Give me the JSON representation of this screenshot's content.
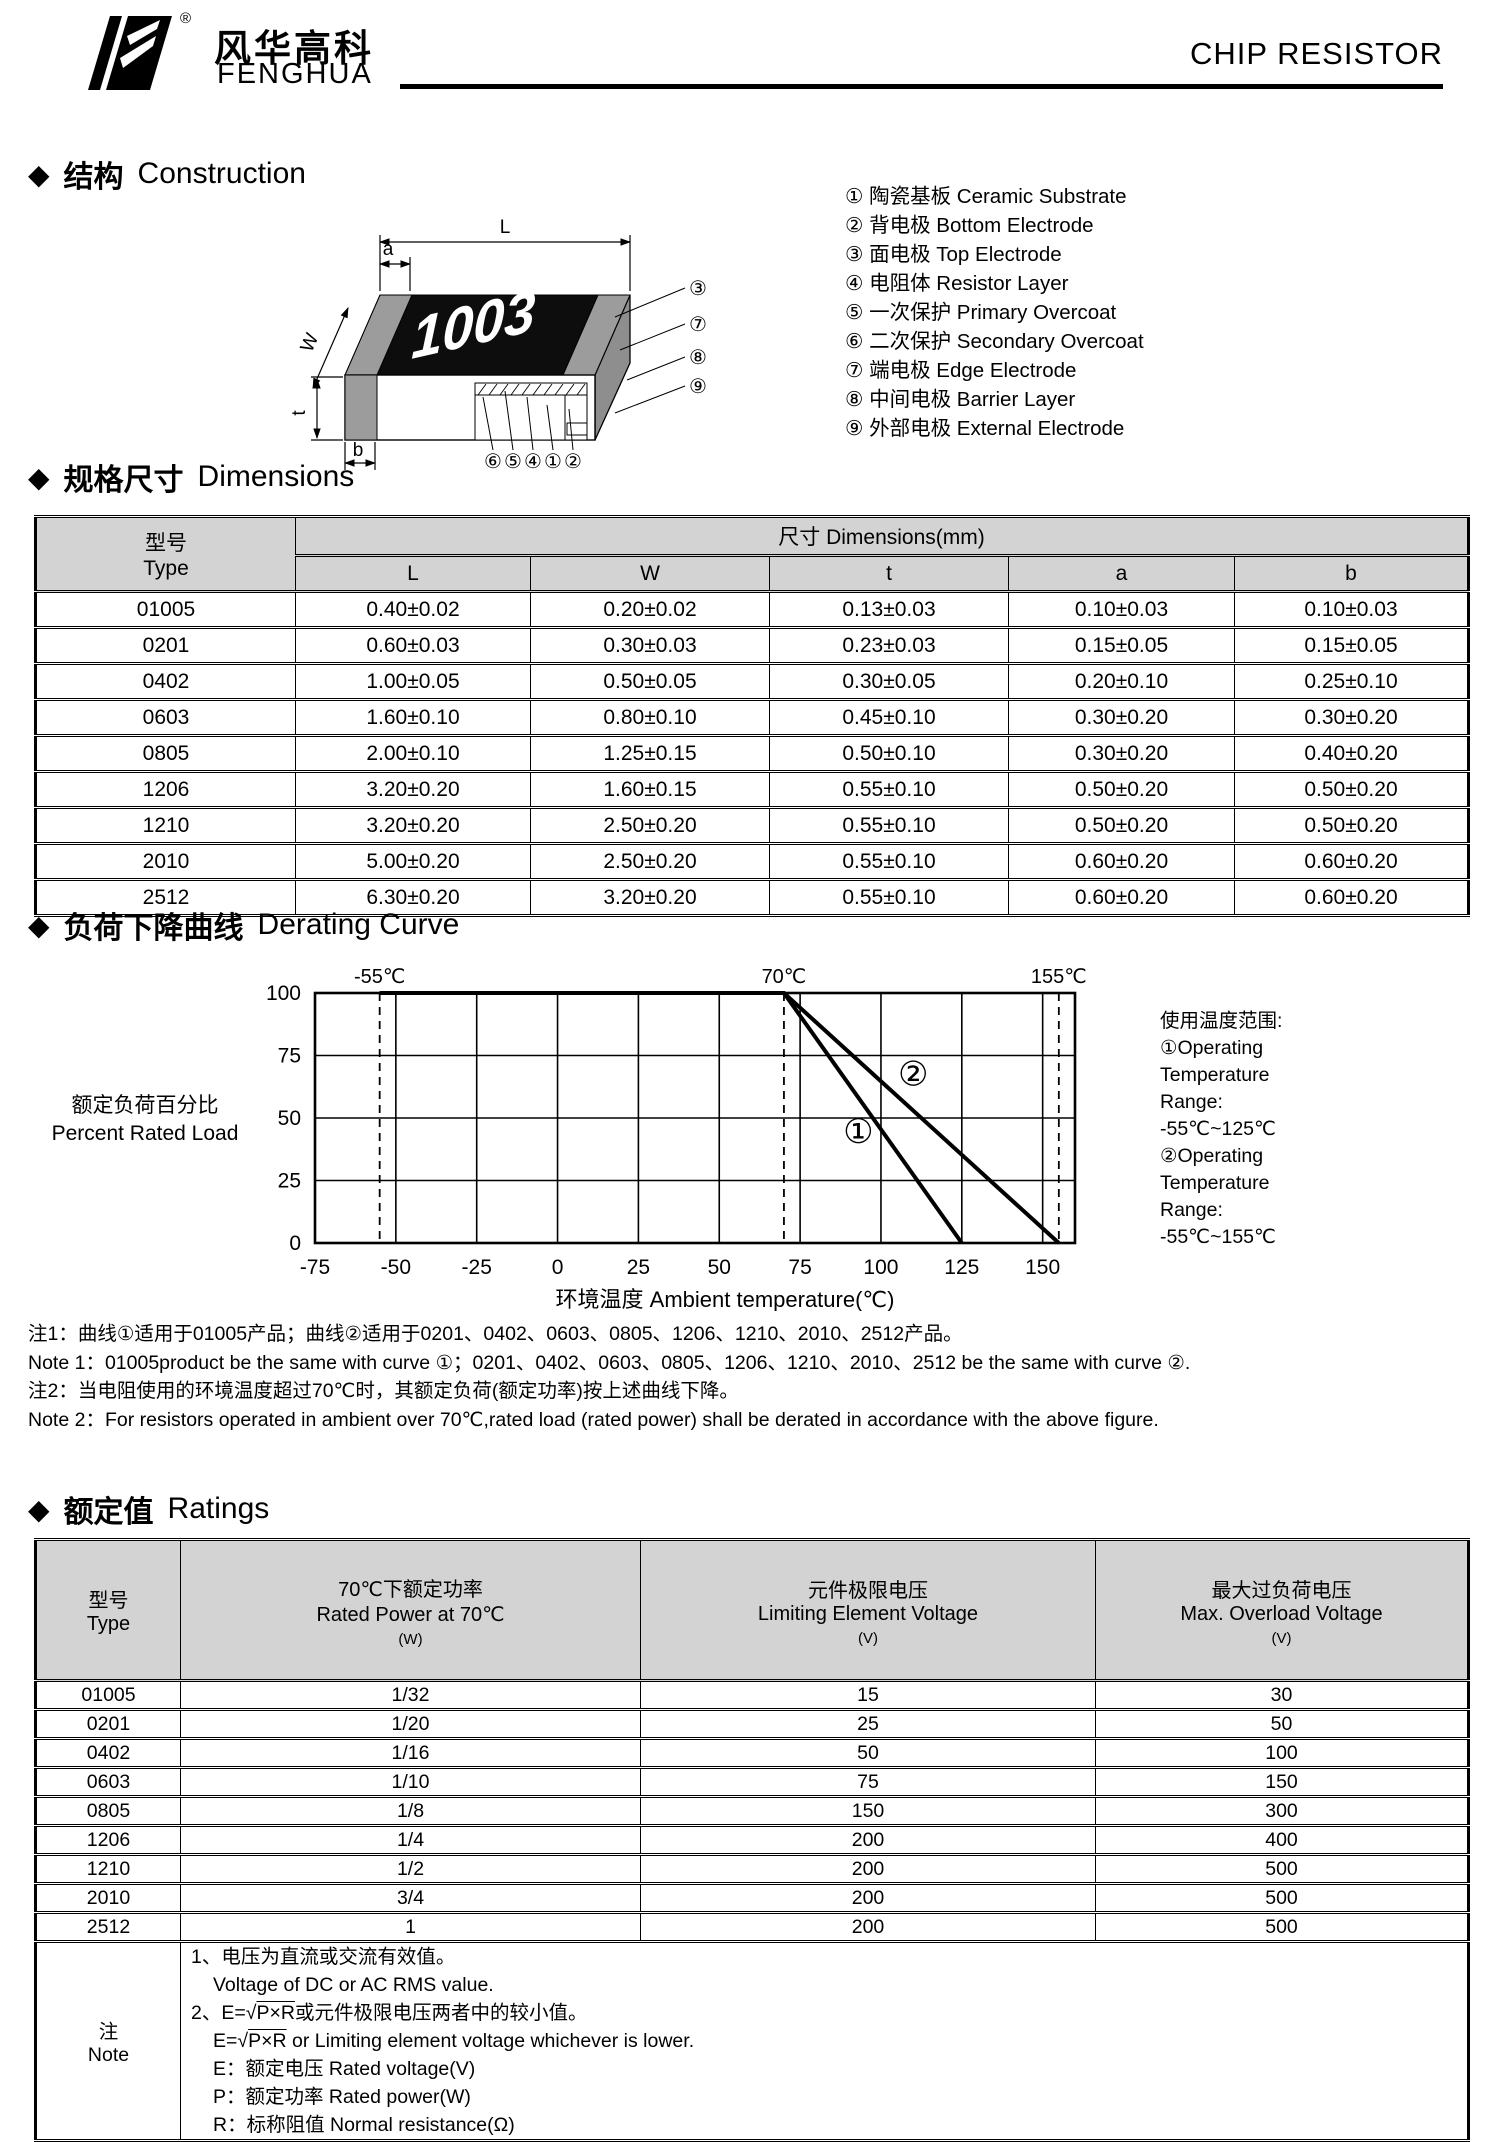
{
  "icons": {
    "diamond": "◆"
  },
  "header": {
    "logo_cn": "风华高科",
    "logo_en": "FENGHUA",
    "registered": "®",
    "doc_title": "CHIP RESISTOR"
  },
  "construction": {
    "heading_cn": "结构",
    "heading_en": "Construction",
    "marking": "1003",
    "dims": {
      "L": "L",
      "a": "a",
      "W": "W",
      "t": "t",
      "b": "b"
    },
    "right_callouts": [
      "③",
      "⑦",
      "⑧",
      "⑨"
    ],
    "bottom_callouts": [
      "⑥",
      "⑤",
      "④",
      "①",
      "②"
    ],
    "legend": [
      {
        "num": "①",
        "cn": "陶瓷基板",
        "en": "Ceramic Substrate"
      },
      {
        "num": "②",
        "cn": "背电极",
        "en": "Bottom Electrode"
      },
      {
        "num": "③",
        "cn": "面电极",
        "en": "Top Electrode"
      },
      {
        "num": "④",
        "cn": "电阻体",
        "en": "Resistor Layer"
      },
      {
        "num": "⑤",
        "cn": "一次保护",
        "en": "Primary Overcoat"
      },
      {
        "num": "⑥",
        "cn": "二次保护",
        "en": "Secondary Overcoat"
      },
      {
        "num": "⑦",
        "cn": "端电极",
        "en": "Edge Electrode"
      },
      {
        "num": "⑧",
        "cn": "中间电极",
        "en": "Barrier Layer"
      },
      {
        "num": "⑨",
        "cn": "外部电极",
        "en": "External Electrode"
      }
    ]
  },
  "dimensions": {
    "heading_cn": "规格尺寸",
    "heading_en": "Dimensions",
    "type_header_cn": "型号",
    "type_header_en": "Type",
    "group_header": "尺寸 Dimensions(mm)",
    "columns": [
      "L",
      "W",
      "t",
      "a",
      "b"
    ],
    "rows": [
      {
        "type": "01005",
        "L": "0.40±0.02",
        "W": "0.20±0.02",
        "t": "0.13±0.03",
        "a": "0.10±0.03",
        "b": "0.10±0.03"
      },
      {
        "type": "0201",
        "L": "0.60±0.03",
        "W": "0.30±0.03",
        "t": "0.23±0.03",
        "a": "0.15±0.05",
        "b": "0.15±0.05"
      },
      {
        "type": "0402",
        "L": "1.00±0.05",
        "W": "0.50±0.05",
        "t": "0.30±0.05",
        "a": "0.20±0.10",
        "b": "0.25±0.10"
      },
      {
        "type": "0603",
        "L": "1.60±0.10",
        "W": "0.80±0.10",
        "t": "0.45±0.10",
        "a": "0.30±0.20",
        "b": "0.30±0.20"
      },
      {
        "type": "0805",
        "L": "2.00±0.10",
        "W": "1.25±0.15",
        "t": "0.50±0.10",
        "a": "0.30±0.20",
        "b": "0.40±0.20"
      },
      {
        "type": "1206",
        "L": "3.20±0.20",
        "W": "1.60±0.15",
        "t": "0.55±0.10",
        "a": "0.50±0.20",
        "b": "0.50±0.20"
      },
      {
        "type": "1210",
        "L": "3.20±0.20",
        "W": "2.50±0.20",
        "t": "0.55±0.10",
        "a": "0.50±0.20",
        "b": "0.50±0.20"
      },
      {
        "type": "2010",
        "L": "5.00±0.20",
        "W": "2.50±0.20",
        "t": "0.55±0.10",
        "a": "0.60±0.20",
        "b": "0.60±0.20"
      },
      {
        "type": "2512",
        "L": "6.30±0.20",
        "W": "3.20±0.20",
        "t": "0.55±0.10",
        "a": "0.60±0.20",
        "b": "0.60±0.20"
      }
    ]
  },
  "derating": {
    "heading_cn": "负荷下降曲线",
    "heading_en": "Derating Curve",
    "side_note_lines": [
      "使用温度范围:",
      "①Operating",
      "Temperature",
      "Range:",
      "-55℃~125℃",
      "②Operating",
      "Temperature",
      "Range:",
      "-55℃~155℃"
    ],
    "notes": [
      "注1：曲线①适用于01005产品；曲线②适用于0201、0402、0603、0805、1206、1210、2010、2512产品。",
      "Note 1：01005product be the same with curve ①；0201、0402、0603、0805、1206、1210、2010、2512 be the same with curve ②.",
      "注2：当电阻使用的环境温度超过70℃时，其额定负荷(额定功率)按上述曲线下降。",
      "Note 2：For resistors operated in ambient over 70℃,rated load (rated power) shall be derated in accordance with the above figure."
    ]
  },
  "chart_data": {
    "type": "line",
    "title": "",
    "xlabel": "环境温度 Ambient temperature(℃)",
    "ylabel_cn": "额定负荷百分比",
    "ylabel_en": "Percent Rated Load",
    "xlim": [
      -75,
      160
    ],
    "ylim": [
      0,
      100
    ],
    "x_ticks": [
      -75,
      -50,
      -25,
      0,
      25,
      50,
      75,
      100,
      125,
      150
    ],
    "y_ticks": [
      0,
      25,
      50,
      75,
      100
    ],
    "grid": true,
    "legend_position": "none",
    "dashed_verticals": [
      {
        "x": -55,
        "label": "-55℃"
      },
      {
        "x": 70,
        "label": "70℃"
      },
      {
        "x": 155,
        "label": "155℃"
      }
    ],
    "series": [
      {
        "name": "①",
        "points": [
          [
            -55,
            100
          ],
          [
            70,
            100
          ],
          [
            125,
            0
          ]
        ],
        "label_at": [
          93,
          40
        ]
      },
      {
        "name": "②",
        "points": [
          [
            -55,
            100
          ],
          [
            70,
            100
          ],
          [
            155,
            0
          ]
        ],
        "label_at": [
          110,
          63
        ]
      }
    ]
  },
  "ratings": {
    "heading_cn": "额定值",
    "heading_en": "Ratings",
    "type_header_cn": "型号",
    "type_header_en": "Type",
    "col_power": {
      "cn": "70℃下额定功率",
      "en": "Rated Power at 70℃",
      "unit": "(W)"
    },
    "col_lev": {
      "cn": "元件极限电压",
      "en": "Limiting Element Voltage",
      "unit": "(V)"
    },
    "col_mov": {
      "cn": "最大过负荷电压",
      "en": "Max. Overload Voltage",
      "unit": "(V)"
    },
    "rows": [
      {
        "type": "01005",
        "power": "1/32",
        "lev": "15",
        "mov": "30"
      },
      {
        "type": "0201",
        "power": "1/20",
        "lev": "25",
        "mov": "50"
      },
      {
        "type": "0402",
        "power": "1/16",
        "lev": "50",
        "mov": "100"
      },
      {
        "type": "0603",
        "power": "1/10",
        "lev": "75",
        "mov": "150"
      },
      {
        "type": "0805",
        "power": "1/8",
        "lev": "150",
        "mov": "300"
      },
      {
        "type": "1206",
        "power": "1/4",
        "lev": "200",
        "mov": "400"
      },
      {
        "type": "1210",
        "power": "1/2",
        "lev": "200",
        "mov": "500"
      },
      {
        "type": "2010",
        "power": "3/4",
        "lev": "200",
        "mov": "500"
      },
      {
        "type": "2512",
        "power": "1",
        "lev": "200",
        "mov": "500"
      }
    ],
    "note_label_cn": "注",
    "note_label_en": "Note",
    "note_lines": [
      {
        "pre": "1、电压为直流或交流有效值。",
        "rad": "",
        "post": "",
        "indent": 0
      },
      {
        "pre": "Voltage of DC or AC RMS value.",
        "rad": "",
        "post": "",
        "indent": 1
      },
      {
        "pre": "2、E=√",
        "rad": "P×R",
        "post": "或元件极限电压两者中的较小值。",
        "indent": 0
      },
      {
        "pre": "E=√",
        "rad": "P×R",
        "post": " or Limiting element voltage whichever is lower.",
        "indent": 1
      },
      {
        "pre": "E：额定电压 Rated voltage(V)",
        "rad": "",
        "post": "",
        "indent": 1
      },
      {
        "pre": "P：额定功率 Rated power(W)",
        "rad": "",
        "post": "",
        "indent": 1
      },
      {
        "pre": "R：标称阻值 Normal resistance(Ω)",
        "rad": "",
        "post": "",
        "indent": 1
      }
    ]
  }
}
